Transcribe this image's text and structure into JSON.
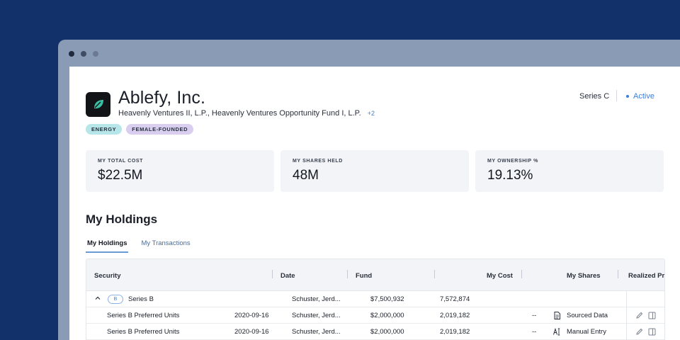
{
  "company": {
    "name": "Ablefy, Inc.",
    "funds": "Heavenly Ventures II, L.P., Heavenly Ventures Opportunity Fund I, L.P.",
    "funds_more": "+2",
    "tags": [
      "ENERGY",
      "FEMALE-FOUNDED"
    ],
    "series": "Series C",
    "status": "Active",
    "logo_icon": "leaf-logo-icon"
  },
  "stats": [
    {
      "label": "MY TOTAL COST",
      "value": "$22.5M"
    },
    {
      "label": "MY SHARES HELD",
      "value": "48M"
    },
    {
      "label": "MY OWNERSHIP %",
      "value": "19.13%"
    }
  ],
  "section_title": "My Holdings",
  "tabs": [
    "My Holdings",
    "My Transactions"
  ],
  "table": {
    "headers": [
      "Security",
      "Date",
      "Fund",
      "My Cost",
      "My Shares",
      "Realized Pr"
    ],
    "group": {
      "badge": "B",
      "label": "Series B",
      "fund": "Schuster, Jerd...",
      "cost": "$7,500,932",
      "shares": "7,572,874"
    },
    "rows": [
      {
        "security": "Series B Preferred Units",
        "date": "2020-09-16",
        "fund": "Schuster, Jerd...",
        "cost": "$2,000,000",
        "shares": "2,019,182",
        "dash": "--",
        "source": "Sourced Data",
        "source_icon": "document-icon"
      },
      {
        "security": "Series B Preferred Units",
        "date": "2020-09-16",
        "fund": "Schuster, Jerd...",
        "cost": "$2,000,000",
        "shares": "2,019,182",
        "dash": "--",
        "source": "Manual Entry",
        "source_icon": "text-cursor-icon"
      }
    ]
  },
  "colors": {
    "background": "#12316a",
    "accent": "#3c7fd8",
    "tag_energy": "#b6e6ea",
    "tag_female": "#d9cdf0"
  }
}
